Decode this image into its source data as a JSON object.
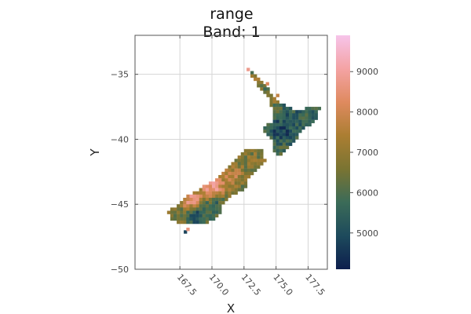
{
  "chart_data": {
    "type": "heatmap",
    "title": "range",
    "subtitle": "Band: 1",
    "xlabel": "X",
    "ylabel": "Y",
    "xlim": [
      164,
      179
    ],
    "ylim": [
      -50,
      -32
    ],
    "xticks": [
      167.5,
      170.0,
      172.5,
      175.0,
      177.5
    ],
    "xtick_labels": [
      "167.5",
      "170.0",
      "172.5",
      "175.0",
      "177.5"
    ],
    "yticks": [
      -35,
      -40,
      -45,
      -50
    ],
    "ytick_labels": [
      "−35",
      "−40",
      "−45",
      "−50"
    ],
    "grid": true,
    "colorbar": {
      "min": 4100,
      "max": 9900,
      "ticks": [
        5000,
        6000,
        7000,
        8000,
        9000
      ],
      "tick_labels": [
        "5000",
        "6000",
        "7000",
        "8000",
        "9000"
      ],
      "colormap": [
        "#0d1e4d",
        "#1d4a5c",
        "#3b6b58",
        "#7a7432",
        "#ab7e32",
        "#df8a5f",
        "#f4a3a4",
        "#f6c4ea"
      ]
    },
    "regions": [
      {
        "name": "",
        "outline": [
          [
            172.7,
            -34.5
          ],
          [
            173.5,
            -35.2
          ],
          [
            174.3,
            -36.0
          ],
          [
            174.9,
            -36.9
          ],
          [
            175.7,
            -37.4
          ],
          [
            176.6,
            -37.7
          ],
          [
            177.6,
            -37.6
          ],
          [
            178.4,
            -37.6
          ],
          [
            178.0,
            -38.8
          ],
          [
            177.0,
            -39.2
          ],
          [
            176.7,
            -40.0
          ],
          [
            175.6,
            -41.0
          ],
          [
            175.0,
            -41.4
          ],
          [
            174.8,
            -40.9
          ],
          [
            174.6,
            -40.0
          ],
          [
            173.9,
            -39.1
          ],
          [
            174.7,
            -38.7
          ],
          [
            174.7,
            -37.6
          ],
          [
            174.4,
            -36.9
          ],
          [
            173.8,
            -36.2
          ],
          [
            173.0,
            -35.1
          ]
        ],
        "hotspots": [
          {
            "lon": 175.5,
            "lat": -39.3,
            "value": 4500,
            "spread": 0.7
          },
          {
            "lon": 174.9,
            "lat": -36.8,
            "value": 7200,
            "spread": 0.5
          },
          {
            "lon": 173.6,
            "lat": -35.4,
            "value": 7600,
            "spread": 0.6
          },
          {
            "lon": 176.3,
            "lat": -38.2,
            "value": 5300,
            "spread": 0.7
          },
          {
            "lon": 177.5,
            "lat": -38.3,
            "value": 5400,
            "spread": 0.6
          }
        ],
        "base": 5800
      },
      {
        "name": "",
        "outline": [
          [
            172.7,
            -40.6
          ],
          [
            174.0,
            -40.9
          ],
          [
            174.2,
            -41.7
          ],
          [
            173.4,
            -42.6
          ],
          [
            172.7,
            -43.2
          ],
          [
            172.6,
            -43.8
          ],
          [
            171.4,
            -44.4
          ],
          [
            170.8,
            -45.2
          ],
          [
            170.6,
            -45.9
          ],
          [
            169.4,
            -46.6
          ],
          [
            168.1,
            -46.6
          ],
          [
            166.8,
            -46.2
          ],
          [
            166.5,
            -45.6
          ],
          [
            167.5,
            -45.0
          ],
          [
            168.2,
            -44.3
          ],
          [
            169.4,
            -43.6
          ],
          [
            170.5,
            -43.0
          ],
          [
            171.4,
            -42.1
          ],
          [
            172.1,
            -41.3
          ]
        ],
        "hotspots": [
          {
            "lon": 170.0,
            "lat": -43.6,
            "value": 9400,
            "spread": 0.7
          },
          {
            "lon": 168.4,
            "lat": -44.6,
            "value": 9100,
            "spread": 0.6
          },
          {
            "lon": 171.4,
            "lat": -42.8,
            "value": 8000,
            "spread": 0.7
          },
          {
            "lon": 168.8,
            "lat": -45.9,
            "value": 4600,
            "spread": 0.6
          },
          {
            "lon": 170.2,
            "lat": -45.3,
            "value": 5300,
            "spread": 0.6
          },
          {
            "lon": 173.2,
            "lat": -41.3,
            "value": 6800,
            "spread": 0.7
          }
        ],
        "base": 6500
      }
    ]
  }
}
